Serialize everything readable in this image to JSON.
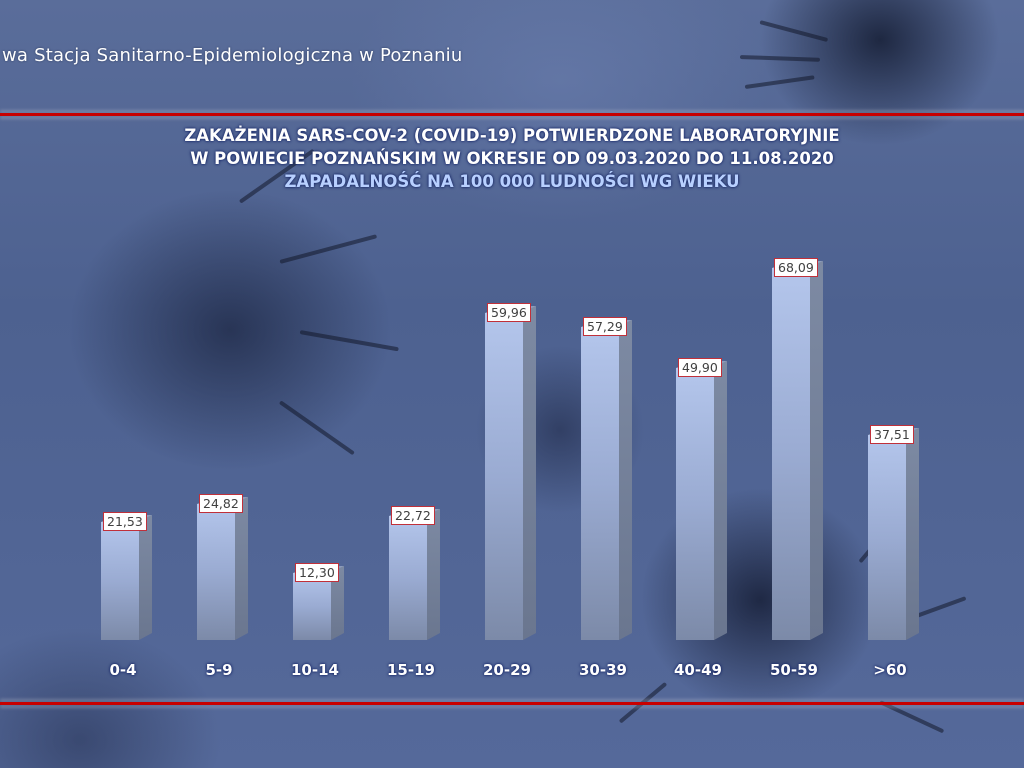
{
  "header": {
    "organization": "wa Stacja Sanitarno-Epidemiologiczna w Poznaniu"
  },
  "colors": {
    "background": "#4f6491",
    "rule_line": "#c80000",
    "bar_front": "#a6b8e0",
    "label_border": "#c0303a",
    "title_text": "#ffffff",
    "subtitle_text": "#b8d0ff"
  },
  "chart_data": {
    "type": "bar",
    "title": "ZAKAŻENIA SARS-COV-2 (COVID-19) POTWIERDZONE LABORATORYJNIE W POWIECIE POZNAŃSKIM W OKRESIE OD 09.03.2020 DO 11.08.2020",
    "title_lines": [
      "ZAKAŻENIA SARS-COV-2 (COVID-19) POTWIERDZONE LABORATORYJNIE",
      "W POWIECIE POZNAŃSKIM W OKRESIE OD 09.03.2020 DO 11.08.2020"
    ],
    "subtitle": "ZAPADALNOŚĆ NA 100 000 LUDNOŚCI WG WIEKU",
    "xlabel": "",
    "ylabel": "",
    "categories": [
      "0-4",
      "5-9",
      "10-14",
      "15-19",
      "20-29",
      "30-39",
      "40-49",
      "50-59",
      ">60"
    ],
    "values": [
      21.53,
      24.82,
      12.3,
      22.72,
      59.96,
      57.29,
      49.9,
      68.09,
      37.51
    ],
    "value_labels": [
      "21,53",
      "24,82",
      "12,30",
      "22,72",
      "59,96",
      "57,29",
      "49,90",
      "68,09",
      "37,51"
    ],
    "ylim": [
      0,
      70
    ],
    "grid": false,
    "legend": null,
    "style": "3d-column"
  }
}
